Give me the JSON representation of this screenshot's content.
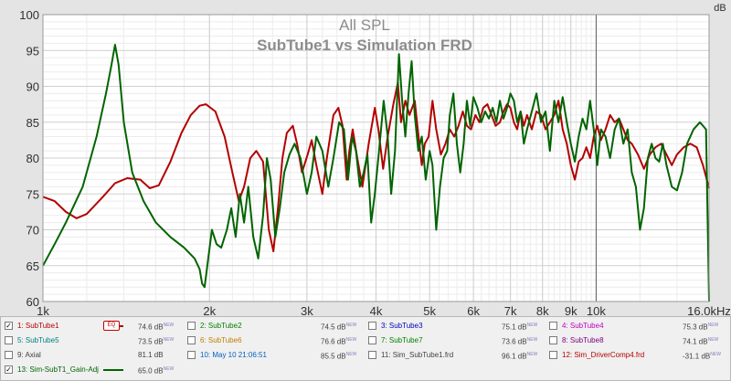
{
  "chart_data": {
    "type": "line",
    "title": "All SPL",
    "subtitle": "SubTube1 vs Simulation FRD",
    "ylabel": "dB",
    "xunit": "Hz",
    "xscale": "log",
    "xlim": [
      1000,
      16000
    ],
    "ylim": [
      60,
      100
    ],
    "grid": true,
    "background": "#e4e4e4",
    "xticks": [
      {
        "v": 1000,
        "label": "1k"
      },
      {
        "v": 2000,
        "label": "2k"
      },
      {
        "v": 3000,
        "label": "3k"
      },
      {
        "v": 4000,
        "label": "4k"
      },
      {
        "v": 5000,
        "label": "5k"
      },
      {
        "v": 6000,
        "label": "6k"
      },
      {
        "v": 7000,
        "label": "7k"
      },
      {
        "v": 8000,
        "label": "8k"
      },
      {
        "v": 9000,
        "label": "9k"
      },
      {
        "v": 10000,
        "label": "10k"
      },
      {
        "v": 16000,
        "label": "16.0kHz"
      }
    ],
    "yticks": [
      60,
      65,
      70,
      75,
      80,
      85,
      90,
      95,
      100
    ],
    "series": [
      {
        "name": "SubTube1",
        "color": "#b40000",
        "points": [
          [
            1000,
            74.6
          ],
          [
            1050,
            74.0
          ],
          [
            1100,
            72.5
          ],
          [
            1150,
            71.6
          ],
          [
            1200,
            72.2
          ],
          [
            1280,
            74.5
          ],
          [
            1350,
            76.5
          ],
          [
            1420,
            77.2
          ],
          [
            1500,
            77.0
          ],
          [
            1560,
            75.8
          ],
          [
            1620,
            76.2
          ],
          [
            1700,
            79.5
          ],
          [
            1780,
            83.5
          ],
          [
            1850,
            86.0
          ],
          [
            1920,
            87.3
          ],
          [
            1970,
            87.5
          ],
          [
            2050,
            86.5
          ],
          [
            2130,
            83.0
          ],
          [
            2200,
            78.0
          ],
          [
            2260,
            74.0
          ],
          [
            2310,
            76.0
          ],
          [
            2370,
            80.0
          ],
          [
            2430,
            81.0
          ],
          [
            2500,
            79.5
          ],
          [
            2560,
            70.0
          ],
          [
            2610,
            67.0
          ],
          [
            2660,
            73.0
          ],
          [
            2710,
            80.0
          ],
          [
            2760,
            83.5
          ],
          [
            2830,
            84.5
          ],
          [
            2880,
            82.0
          ],
          [
            2940,
            78.0
          ],
          [
            3010,
            80.5
          ],
          [
            3060,
            82.5
          ],
          [
            3120,
            79.0
          ],
          [
            3200,
            75.0
          ],
          [
            3260,
            80.0
          ],
          [
            3350,
            86.0
          ],
          [
            3420,
            87.0
          ],
          [
            3480,
            84.5
          ],
          [
            3540,
            77.0
          ],
          [
            3580,
            81.0
          ],
          [
            3630,
            84.0
          ],
          [
            3700,
            80.0
          ],
          [
            3780,
            76.0
          ],
          [
            3880,
            82.0
          ],
          [
            3980,
            87.0
          ],
          [
            4040,
            84.0
          ],
          [
            4120,
            78.5
          ],
          [
            4200,
            83.0
          ],
          [
            4300,
            87.5
          ],
          [
            4380,
            90.5
          ],
          [
            4440,
            85.0
          ],
          [
            4520,
            88.0
          ],
          [
            4600,
            86.0
          ],
          [
            4700,
            88.0
          ],
          [
            4760,
            84.0
          ],
          [
            4840,
            79.0
          ],
          [
            4900,
            82.0
          ],
          [
            4980,
            83.0
          ],
          [
            5060,
            88.0
          ],
          [
            5140,
            84.0
          ],
          [
            5240,
            80.5
          ],
          [
            5340,
            82.0
          ],
          [
            5440,
            84.0
          ],
          [
            5540,
            83.0
          ],
          [
            5640,
            84.5
          ],
          [
            5740,
            86.5
          ],
          [
            5840,
            84.5
          ],
          [
            5940,
            84.0
          ],
          [
            6050,
            86.0
          ],
          [
            6150,
            85.0
          ],
          [
            6250,
            87.0
          ],
          [
            6360,
            87.5
          ],
          [
            6470,
            86.0
          ],
          [
            6580,
            84.5
          ],
          [
            6700,
            85.0
          ],
          [
            6800,
            86.5
          ],
          [
            6900,
            87.5
          ],
          [
            7000,
            87.0
          ],
          [
            7100,
            85.0
          ],
          [
            7200,
            84.0
          ],
          [
            7300,
            86.5
          ],
          [
            7400,
            84.5
          ],
          [
            7500,
            86.0
          ],
          [
            7650,
            84.0
          ],
          [
            7800,
            86.5
          ],
          [
            7950,
            86.0
          ],
          [
            8100,
            84.0
          ],
          [
            8250,
            85.0
          ],
          [
            8400,
            86.0
          ],
          [
            8550,
            88.0
          ],
          [
            8700,
            84.0
          ],
          [
            8850,
            82.0
          ],
          [
            9000,
            79.0
          ],
          [
            9150,
            77.0
          ],
          [
            9300,
            79.5
          ],
          [
            9450,
            80.0
          ],
          [
            9600,
            81.5
          ],
          [
            9750,
            80.0
          ],
          [
            9900,
            83.0
          ],
          [
            10050,
            84.5
          ],
          [
            10200,
            82.5
          ],
          [
            10400,
            84.0
          ],
          [
            10600,
            86.0
          ],
          [
            10800,
            85.0
          ],
          [
            11000,
            85.5
          ],
          [
            11200,
            84.0
          ],
          [
            11400,
            82.5
          ],
          [
            11600,
            82.0
          ],
          [
            11900,
            80.5
          ],
          [
            12200,
            78.5
          ],
          [
            12500,
            80.5
          ],
          [
            12800,
            81.5
          ],
          [
            13100,
            82.0
          ],
          [
            13400,
            80.5
          ],
          [
            13700,
            79.0
          ],
          [
            14000,
            80.5
          ],
          [
            14400,
            81.5
          ],
          [
            14800,
            82.0
          ],
          [
            15200,
            81.5
          ],
          [
            15600,
            79.0
          ],
          [
            16000,
            75.8
          ]
        ]
      },
      {
        "name": "Sim-SubT1_Gain-Adj",
        "color": "#006400",
        "points": [
          [
            1000,
            65.0
          ],
          [
            1050,
            68.0
          ],
          [
            1100,
            71.0
          ],
          [
            1180,
            76.0
          ],
          [
            1250,
            83.0
          ],
          [
            1300,
            89.0
          ],
          [
            1330,
            93.0
          ],
          [
            1350,
            95.8
          ],
          [
            1370,
            93.0
          ],
          [
            1400,
            85.0
          ],
          [
            1450,
            78.0
          ],
          [
            1520,
            74.0
          ],
          [
            1600,
            71.0
          ],
          [
            1700,
            69.0
          ],
          [
            1800,
            67.5
          ],
          [
            1880,
            66.0
          ],
          [
            1920,
            64.5
          ],
          [
            1940,
            62.5
          ],
          [
            1960,
            62.0
          ],
          [
            1990,
            66.0
          ],
          [
            2020,
            70.0
          ],
          [
            2060,
            68.0
          ],
          [
            2100,
            67.5
          ],
          [
            2150,
            70.0
          ],
          [
            2190,
            73.0
          ],
          [
            2230,
            69.0
          ],
          [
            2270,
            75.0
          ],
          [
            2310,
            71.0
          ],
          [
            2350,
            76.0
          ],
          [
            2400,
            69.0
          ],
          [
            2450,
            66.0
          ],
          [
            2500,
            72.0
          ],
          [
            2540,
            80.0
          ],
          [
            2580,
            77.0
          ],
          [
            2630,
            69.0
          ],
          [
            2680,
            73.0
          ],
          [
            2730,
            78.0
          ],
          [
            2790,
            80.5
          ],
          [
            2850,
            82.0
          ],
          [
            2920,
            80.0
          ],
          [
            3000,
            75.0
          ],
          [
            3060,
            78.0
          ],
          [
            3120,
            83.0
          ],
          [
            3200,
            81.0
          ],
          [
            3280,
            76.0
          ],
          [
            3350,
            80.0
          ],
          [
            3430,
            85.0
          ],
          [
            3500,
            84.0
          ],
          [
            3560,
            77.0
          ],
          [
            3620,
            83.0
          ],
          [
            3680,
            81.0
          ],
          [
            3740,
            76.0
          ],
          [
            3800,
            78.0
          ],
          [
            3860,
            80.5
          ],
          [
            3920,
            71.0
          ],
          [
            3980,
            75.0
          ],
          [
            4050,
            81.0
          ],
          [
            4130,
            88.0
          ],
          [
            4200,
            83.0
          ],
          [
            4260,
            75.0
          ],
          [
            4330,
            81.0
          ],
          [
            4400,
            94.5
          ],
          [
            4460,
            88.0
          ],
          [
            4520,
            83.0
          ],
          [
            4580,
            89.0
          ],
          [
            4640,
            93.5
          ],
          [
            4700,
            86.0
          ],
          [
            4770,
            81.0
          ],
          [
            4840,
            83.0
          ],
          [
            4920,
            77.0
          ],
          [
            5000,
            81.0
          ],
          [
            5060,
            79.0
          ],
          [
            5140,
            70.0
          ],
          [
            5220,
            76.0
          ],
          [
            5300,
            80.0
          ],
          [
            5380,
            81.0
          ],
          [
            5440,
            86.0
          ],
          [
            5520,
            89.0
          ],
          [
            5600,
            82.0
          ],
          [
            5680,
            78.0
          ],
          [
            5760,
            82.0
          ],
          [
            5840,
            88.0
          ],
          [
            5920,
            84.5
          ],
          [
            6000,
            88.5
          ],
          [
            6100,
            87.0
          ],
          [
            6200,
            85.0
          ],
          [
            6300,
            86.5
          ],
          [
            6400,
            85.5
          ],
          [
            6500,
            87.0
          ],
          [
            6600,
            85.0
          ],
          [
            6700,
            88.0
          ],
          [
            6800,
            85.5
          ],
          [
            6900,
            87.0
          ],
          [
            7000,
            89.0
          ],
          [
            7100,
            88.0
          ],
          [
            7200,
            85.0
          ],
          [
            7300,
            86.5
          ],
          [
            7400,
            82.0
          ],
          [
            7500,
            84.0
          ],
          [
            7650,
            86.5
          ],
          [
            7800,
            89.0
          ],
          [
            7950,
            85.0
          ],
          [
            8100,
            86.5
          ],
          [
            8250,
            81.0
          ],
          [
            8400,
            88.0
          ],
          [
            8550,
            85.0
          ],
          [
            8700,
            88.5
          ],
          [
            8850,
            85.0
          ],
          [
            9000,
            82.0
          ],
          [
            9150,
            79.5
          ],
          [
            9300,
            83.0
          ],
          [
            9450,
            85.5
          ],
          [
            9600,
            84.0
          ],
          [
            9750,
            88.0
          ],
          [
            9900,
            84.0
          ],
          [
            10050,
            79.0
          ],
          [
            10200,
            84.0
          ],
          [
            10400,
            83.0
          ],
          [
            10600,
            80.0
          ],
          [
            10800,
            84.0
          ],
          [
            11000,
            85.5
          ],
          [
            11200,
            82.0
          ],
          [
            11400,
            84.0
          ],
          [
            11600,
            78.0
          ],
          [
            11800,
            76.0
          ],
          [
            12000,
            70.0
          ],
          [
            12200,
            73.0
          ],
          [
            12400,
            80.0
          ],
          [
            12600,
            82.0
          ],
          [
            12800,
            80.0
          ],
          [
            13000,
            79.5
          ],
          [
            13200,
            82.0
          ],
          [
            13400,
            79.0
          ],
          [
            13700,
            76.0
          ],
          [
            14000,
            75.5
          ],
          [
            14300,
            78.0
          ],
          [
            14600,
            82.0
          ],
          [
            15000,
            84.0
          ],
          [
            15400,
            85.0
          ],
          [
            15800,
            84.0
          ],
          [
            16000,
            60.0
          ]
        ]
      }
    ],
    "cursor_x": 10000
  },
  "legend": {
    "rows": [
      [
        {
          "n": "1: SubTube1",
          "color": "#b40000",
          "checked": true,
          "line": true,
          "eq": true,
          "eq_label": "EQ",
          "val": "74.6 dB",
          "sup": "NEW"
        },
        {
          "n": "2: SubTube2",
          "color": "#008000",
          "checked": false,
          "line": false,
          "val": "74.5 dB",
          "sup": "NEW"
        },
        {
          "n": "3: SubTube3",
          "color": "#0000c0",
          "checked": false,
          "line": false,
          "val": "75.1 dB",
          "sup": "NEW"
        },
        {
          "n": "4: SubTube4",
          "color": "#c000c0",
          "checked": false,
          "line": false,
          "val": "75.3 dB",
          "sup": "NEW"
        }
      ],
      [
        {
          "n": "5: SubTube5",
          "color": "#008080",
          "checked": false,
          "line": false,
          "val": "73.5 dB",
          "sup": "NEW"
        },
        {
          "n": "6: SubTube6",
          "color": "#c08000",
          "checked": false,
          "line": false,
          "val": "76.6 dB",
          "sup": "NEW"
        },
        {
          "n": "7: SubTube7",
          "color": "#008000",
          "checked": false,
          "line": false,
          "val": "73.6 dB",
          "sup": "NEW"
        },
        {
          "n": "8: SubTube8",
          "color": "#800080",
          "checked": false,
          "line": false,
          "val": "74.1 dB",
          "sup": "NEW"
        }
      ],
      [
        {
          "n": "9: Axial",
          "color": "#404040",
          "checked": false,
          "line": false,
          "val": "81.1 dB",
          "sup": ""
        },
        {
          "n": "10: May 10 21:06:51",
          "color": "#0060c0",
          "checked": false,
          "line": false,
          "val": "85.5 dB",
          "sup": "NEW"
        },
        {
          "n": "11: Sim_SubTube1.frd",
          "color": "#404040",
          "checked": false,
          "line": false,
          "val": "96.1 dB",
          "sup": "NEW"
        },
        {
          "n": "12: Sim_DriverComp4.frd",
          "color": "#b40000",
          "checked": false,
          "line": false,
          "val": "-31.1 dB",
          "sup": "NEW"
        }
      ],
      [
        {
          "n": "13: Sim-SubT1_Gain-Adj",
          "color": "#006400",
          "checked": true,
          "line": true,
          "eq": false,
          "val": "65.0 dB",
          "sup": "NEW"
        }
      ]
    ]
  }
}
